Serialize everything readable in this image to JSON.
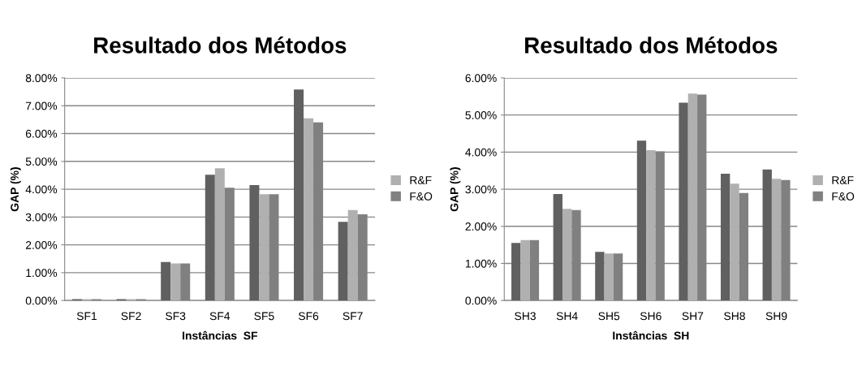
{
  "chart_data": [
    {
      "type": "bar",
      "title": "Resultado dos Métodos",
      "xlabel": "Instâncias  SF",
      "ylabel": "GAP (%)",
      "categories": [
        "SF1",
        "SF2",
        "SF3",
        "SF4",
        "SF5",
        "SF6",
        "SF7"
      ],
      "series": [
        {
          "color": "#606060",
          "values": [
            0.05,
            0.05,
            1.38,
            4.52,
            4.15,
            7.58,
            2.83
          ]
        },
        {
          "name": "R&F",
          "color": "#b0b0b0",
          "values": [
            0.05,
            0.05,
            1.33,
            4.75,
            3.82,
            6.55,
            3.25
          ]
        },
        {
          "name": "F&O",
          "color": "#808080",
          "values": [
            0.05,
            0.05,
            1.33,
            4.05,
            3.82,
            6.4,
            3.1
          ]
        }
      ],
      "ylim": [
        0,
        8
      ],
      "yticks": [
        {
          "value": 0,
          "label": "0.00%"
        },
        {
          "value": 1,
          "label": "1.00%"
        },
        {
          "value": 2,
          "label": "2.00%"
        },
        {
          "value": 3,
          "label": "3.00%"
        },
        {
          "value": 4,
          "label": "4.00%"
        },
        {
          "value": 5,
          "label": "5.00%"
        },
        {
          "value": 6,
          "label": "6.00%"
        },
        {
          "value": 7,
          "label": "7.00%"
        },
        {
          "value": 8,
          "label": "8.00%"
        }
      ],
      "grid": "y",
      "legend": "right"
    },
    {
      "type": "bar",
      "title": "Resultado dos Métodos",
      "xlabel": "Instâncias  SH",
      "ylabel": "GAP (%)",
      "categories": [
        "SH3",
        "SH4",
        "SH5",
        "SH6",
        "SH7",
        "SH8",
        "SH9"
      ],
      "series": [
        {
          "color": "#606060",
          "values": [
            1.55,
            2.87,
            1.31,
            4.31,
            5.33,
            3.42,
            3.53
          ]
        },
        {
          "name": "R&F",
          "color": "#b0b0b0",
          "values": [
            1.63,
            2.47,
            1.27,
            4.05,
            5.58,
            3.15,
            3.28
          ]
        },
        {
          "name": "F&O",
          "color": "#808080",
          "values": [
            1.63,
            2.44,
            1.27,
            4.02,
            5.55,
            2.9,
            3.25
          ]
        }
      ],
      "ylim": [
        0,
        6
      ],
      "yticks": [
        {
          "value": 0,
          "label": "0.00%"
        },
        {
          "value": 1,
          "label": "1.00%"
        },
        {
          "value": 2,
          "label": "2.00%"
        },
        {
          "value": 3,
          "label": "3.00%"
        },
        {
          "value": 4,
          "label": "4.00%"
        },
        {
          "value": 5,
          "label": "5.00%"
        },
        {
          "value": 6,
          "label": "6.00%"
        }
      ],
      "grid": "y",
      "legend": "right"
    }
  ]
}
